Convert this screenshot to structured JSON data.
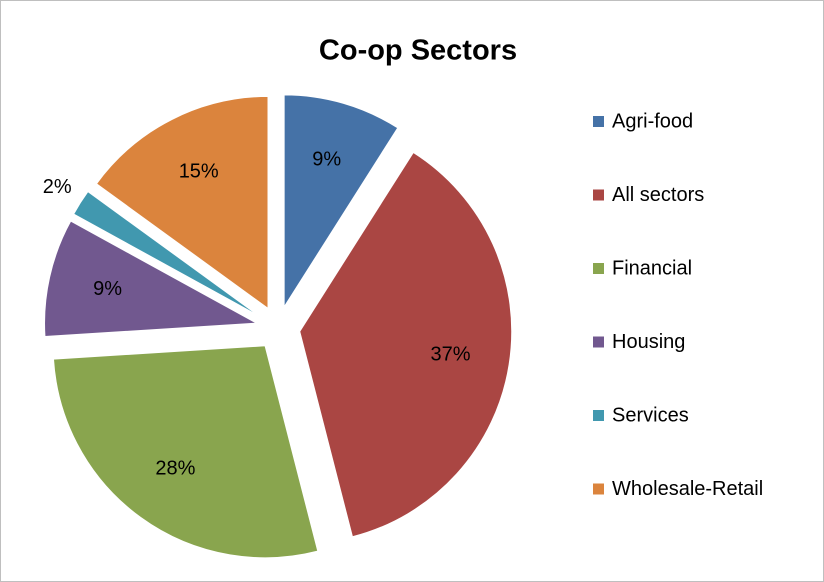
{
  "chart_data": {
    "type": "pie",
    "title": "Co-op Sectors",
    "categories": [
      "Agri-food",
      "All sectors",
      "Financial",
      "Housing",
      "Services",
      "Wholesale-Retail"
    ],
    "values": [
      9,
      37,
      28,
      9,
      2,
      15
    ],
    "value_labels": [
      "9%",
      "37%",
      "28%",
      "9%",
      "2%",
      "15%"
    ],
    "colors": [
      "#4572a7",
      "#aa4643",
      "#89a54e",
      "#71588f",
      "#4198af",
      "#db843d"
    ],
    "exploded": true,
    "legend": "right"
  }
}
